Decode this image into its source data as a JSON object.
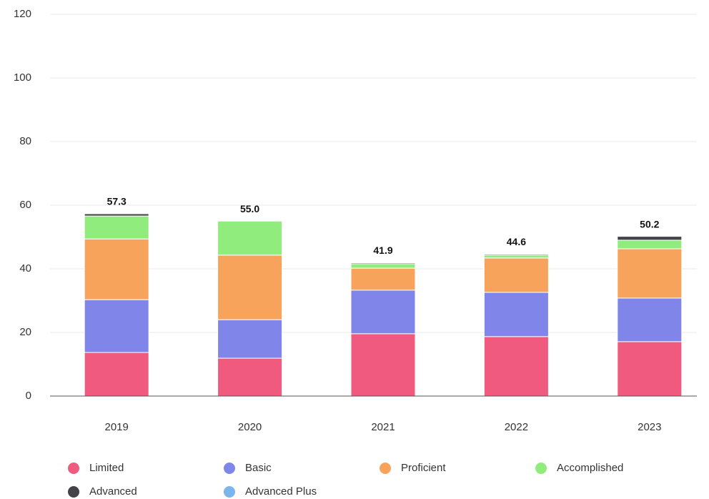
{
  "chart_data": {
    "type": "stacked_bar",
    "categories": [
      "2019",
      "2020",
      "2021",
      "2022",
      "2023"
    ],
    "series": [
      {
        "name": "Limited",
        "color": "#f05a7e",
        "values": [
          13.7,
          11.9,
          19.6,
          18.7,
          17.1
        ]
      },
      {
        "name": "Basic",
        "color": "#8085e9",
        "values": [
          16.6,
          12.1,
          13.7,
          13.9,
          13.7
        ]
      },
      {
        "name": "Proficient",
        "color": "#f7a35c",
        "values": [
          19.1,
          20.3,
          6.9,
          10.8,
          15.5
        ]
      },
      {
        "name": "Accomplished",
        "color": "#90ed7d",
        "values": [
          7.2,
          10.7,
          1.4,
          0.9,
          2.7
        ]
      },
      {
        "name": "Advanced",
        "color": "#434348",
        "values": [
          0.7,
          0,
          0.3,
          0.3,
          1.2
        ]
      },
      {
        "name": "Advanced Plus",
        "color": "#7cb5ec",
        "values": [
          0,
          0,
          0,
          0,
          0
        ]
      }
    ],
    "totals": [
      57.3,
      55,
      41.9,
      44.6,
      50.2
    ],
    "total_labels": [
      "57.3",
      "55.0",
      "41.9",
      "44.6",
      "50.2"
    ],
    "ylim": [
      0,
      120
    ],
    "yticks": [
      0,
      20,
      40,
      60,
      80,
      100,
      120
    ],
    "grid": true
  }
}
